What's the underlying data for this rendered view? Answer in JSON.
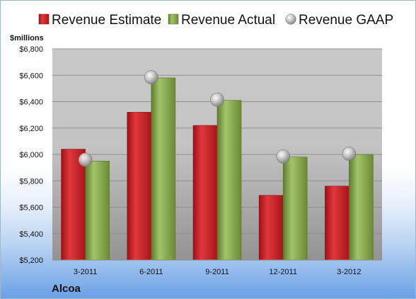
{
  "chart_data": {
    "type": "bar",
    "unit_label": "$millions",
    "company": "Alcoa",
    "categories": [
      "3-2011",
      "6-2011",
      "9-2011",
      "12-2011",
      "3-2012"
    ],
    "series": [
      {
        "name": "Revenue Estimate",
        "kind": "bar",
        "color": "#cc2027",
        "values": [
          6040,
          6320,
          6220,
          5690,
          5760
        ]
      },
      {
        "name": "Revenue Actual",
        "kind": "bar",
        "color": "#8aab4f",
        "values": [
          5950,
          6580,
          6410,
          5980,
          6000
        ]
      },
      {
        "name": "Revenue GAAP",
        "kind": "marker",
        "color": "#b8b8b8",
        "values": [
          5960,
          6585,
          6415,
          5985,
          6005
        ]
      }
    ],
    "ylim": [
      5200,
      6800
    ],
    "yticks": [
      "$5,200",
      "$5,400",
      "$5,600",
      "$5,800",
      "$6,000",
      "$6,200",
      "$6,400",
      "$6,600",
      "$6,800"
    ],
    "grid": true,
    "legend_position": "top"
  }
}
